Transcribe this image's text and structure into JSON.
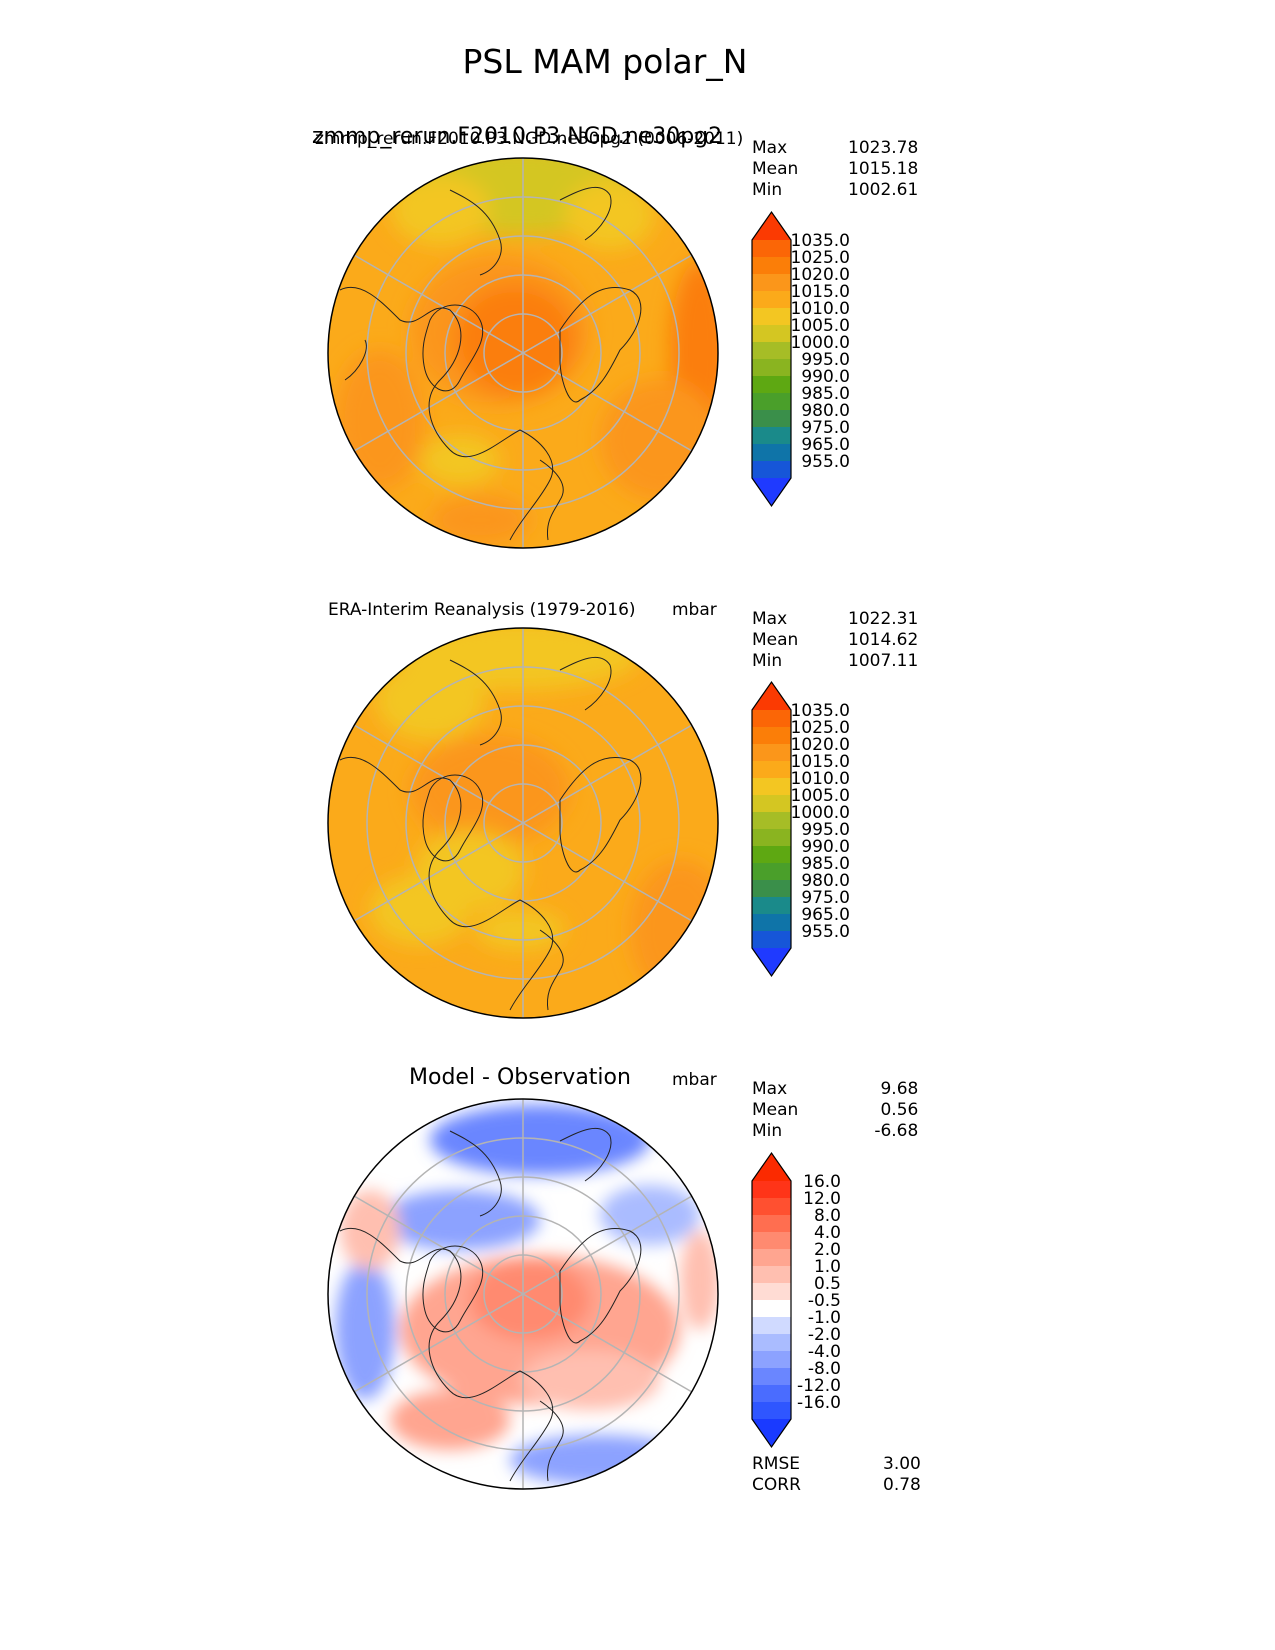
{
  "title": "PSL MAM polar_N",
  "panels": [
    {
      "id": "test",
      "title_large": "zmmp_rerun.F2010.P3.NGD.ne30pg2",
      "title_small": "zmmp_rerun.F2010.P3.NGD.ne30pg2 (0006-2011)",
      "units": "",
      "stats": {
        "max_label": "Max",
        "max": "1023.78",
        "mean_label": "Mean",
        "mean": "1015.18",
        "min_label": "Min",
        "min": "1002.61"
      }
    },
    {
      "id": "reference",
      "title": "ERA-Interim Reanalysis (1979-2016)",
      "units": "mbar",
      "stats": {
        "max_label": "Max",
        "max": "1022.31",
        "mean_label": "Mean",
        "mean": "1014.62",
        "min_label": "Min",
        "min": "1007.11"
      }
    },
    {
      "id": "diff",
      "title": "Model - Observation",
      "units": "mbar",
      "stats": {
        "max_label": "Max",
        "max": "9.68",
        "mean_label": "Mean",
        "mean": "0.56",
        "min_label": "Min",
        "min": "-6.68"
      },
      "metrics": {
        "rmse_label": "RMSE",
        "rmse": "3.00",
        "corr_label": "CORR",
        "corr": "0.78"
      }
    }
  ],
  "chart_data": [
    {
      "type": "heatmap",
      "projection": "north polar stereographic",
      "title": "zmmp_rerun.F2010.P3.NGD.ne30pg2 (0006-2011)",
      "variable": "PSL",
      "units": "mbar",
      "stats": {
        "max": 1023.78,
        "mean": 1015.18,
        "min": 1002.61
      },
      "colorbar": {
        "levels": [
          955,
          965,
          975,
          980,
          985,
          990,
          995,
          1000,
          1005,
          1010,
          1015,
          1020,
          1025,
          1035
        ],
        "tick_labels": [
          "1035.0",
          "1025.0",
          "1020.0",
          "1015.0",
          "1010.0",
          "1005.0",
          "1000.0",
          "995.0",
          "990.0",
          "985.0",
          "980.0",
          "975.0",
          "965.0",
          "955.0"
        ],
        "colors": [
          "#1f3aff",
          "#1656d8",
          "#0f74a8",
          "#1a8a8a",
          "#3a8f4a",
          "#4a9f2a",
          "#5ea812",
          "#8ab420",
          "#a6bd26",
          "#d4c622",
          "#f3c622",
          "#fbaa1a",
          "#fb961a",
          "#fb7e08",
          "#fb6606",
          "#fb3a02"
        ],
        "extend": "both"
      }
    },
    {
      "type": "heatmap",
      "projection": "north polar stereographic",
      "title": "ERA-Interim Reanalysis (1979-2016)",
      "variable": "PSL",
      "units": "mbar",
      "stats": {
        "max": 1022.31,
        "mean": 1014.62,
        "min": 1007.11
      },
      "colorbar": {
        "levels": [
          955,
          965,
          975,
          980,
          985,
          990,
          995,
          1000,
          1005,
          1010,
          1015,
          1020,
          1025,
          1035
        ],
        "tick_labels": [
          "1035.0",
          "1025.0",
          "1020.0",
          "1015.0",
          "1010.0",
          "1005.0",
          "1000.0",
          "995.0",
          "990.0",
          "985.0",
          "980.0",
          "975.0",
          "965.0",
          "955.0"
        ],
        "colors": [
          "#1f3aff",
          "#1656d8",
          "#0f74a8",
          "#1a8a8a",
          "#3a8f4a",
          "#4a9f2a",
          "#5ea812",
          "#8ab420",
          "#a6bd26",
          "#d4c622",
          "#f3c622",
          "#fbaa1a",
          "#fb961a",
          "#fb7e08",
          "#fb6606",
          "#fb3a02"
        ],
        "extend": "both"
      }
    },
    {
      "type": "heatmap",
      "projection": "north polar stereographic",
      "title": "Model - Observation",
      "variable": "PSL difference",
      "units": "mbar",
      "stats": {
        "max": 9.68,
        "mean": 0.56,
        "min": -6.68,
        "rmse": 3.0,
        "corr": 0.78
      },
      "colorbar": {
        "levels": [
          -16,
          -12,
          -8,
          -4,
          -2,
          -1,
          -0.5,
          0.5,
          1,
          2,
          4,
          8,
          12,
          16
        ],
        "tick_labels": [
          "16.0",
          "12.0",
          "8.0",
          "4.0",
          "2.0",
          "1.0",
          "0.5",
          "-0.5",
          "-1.0",
          "-2.0",
          "-4.0",
          "-8.0",
          "-12.0",
          "-16.0"
        ],
        "colors": [
          "#1a3aff",
          "#2f56ff",
          "#4a6cff",
          "#6a86ff",
          "#8ca2ff",
          "#aabcff",
          "#d0daff",
          "#ffffff",
          "#ffdcd4",
          "#ffbfb0",
          "#ffa590",
          "#ff8a70",
          "#ff6e50",
          "#ff5030",
          "#ff3418",
          "#fb2a00"
        ],
        "extend": "both"
      }
    }
  ]
}
